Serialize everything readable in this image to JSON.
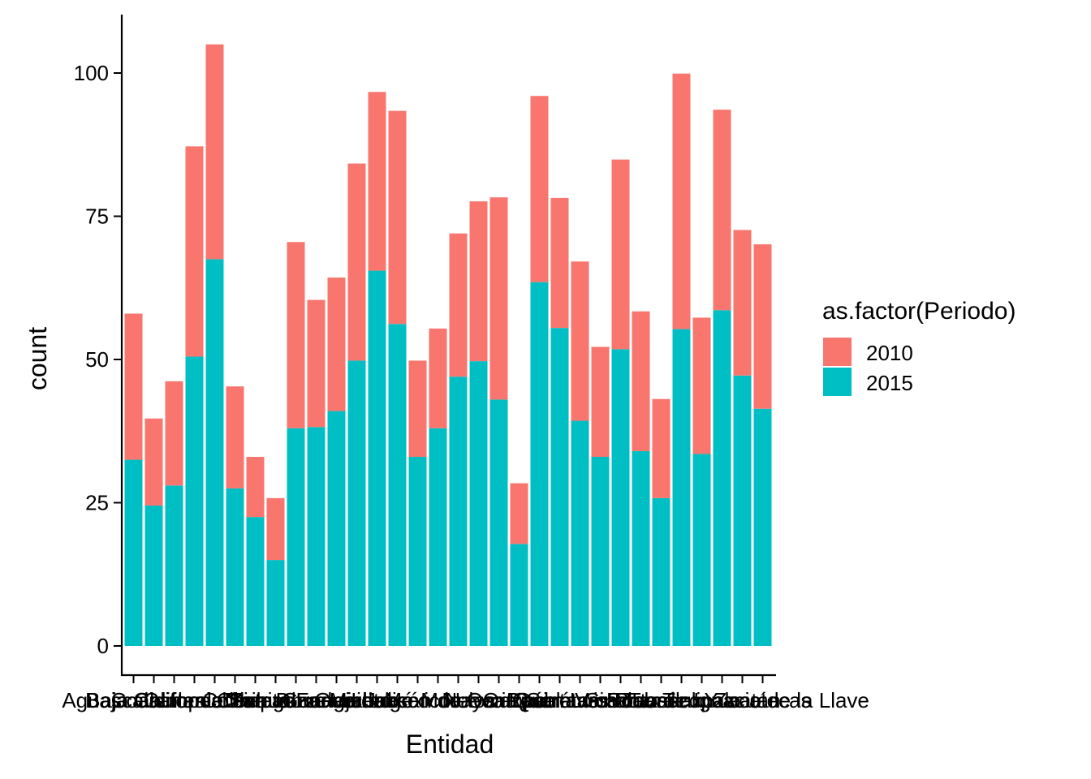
{
  "chart_data": {
    "type": "bar",
    "stacked": true,
    "xlabel": "Entidad",
    "ylabel": "count",
    "ylim": [
      0,
      110
    ],
    "yticks": [
      0,
      25,
      50,
      75,
      100
    ],
    "grid": false,
    "legend": {
      "title": "as.factor(Periodo)",
      "placement": "right"
    },
    "categories": [
      "Aguascalientes",
      "Baja California",
      "Baja California Sur",
      "Campeche",
      "Coahuila de Zaragoza",
      "Colima",
      "Chiapas",
      "Chihuahua",
      "Distrito Federal",
      "Durango",
      "Guanajuato",
      "Guerrero",
      "Hidalgo",
      "Jalisco",
      "México",
      "Michoacán de Ocampo",
      "Morelos",
      "Nayarit",
      "Nuevo León",
      "Oaxaca",
      "Puebla",
      "Querétaro",
      "Quintana Roo",
      "San Luis Potosí",
      "Sinaloa",
      "Sonora",
      "Tabasco",
      "Tamaulipas",
      "Tlaxcala",
      "Veracruz de Ignacio de la Llave",
      "Yucatán",
      "Zacatecas"
    ],
    "series": [
      {
        "name": "2015",
        "color": "#00BFC4",
        "values": [
          32.5,
          24.5,
          28,
          50.5,
          67.5,
          27.5,
          22.5,
          15,
          38,
          38.2,
          41,
          49.8,
          65.5,
          56.2,
          33,
          38,
          47,
          49.7,
          43,
          17.8,
          63.5,
          55.5,
          39.3,
          33,
          51.8,
          34,
          25.8,
          55.3,
          33.5,
          58.6,
          47.2,
          41.4
        ]
      },
      {
        "name": "2010",
        "color": "#F8766D",
        "values": [
          25.5,
          15.2,
          18.2,
          36.7,
          37.5,
          17.8,
          10.5,
          10.8,
          32.5,
          22.2,
          23.3,
          34.4,
          31.2,
          37.2,
          16.8,
          17.4,
          25,
          27.9,
          35.3,
          10.6,
          32.5,
          22.7,
          27.8,
          19.2,
          33.1,
          24.4,
          17.3,
          44.6,
          23.8,
          35,
          25.4,
          28.7
        ]
      }
    ],
    "legend_order": [
      "2010",
      "2015"
    ]
  }
}
